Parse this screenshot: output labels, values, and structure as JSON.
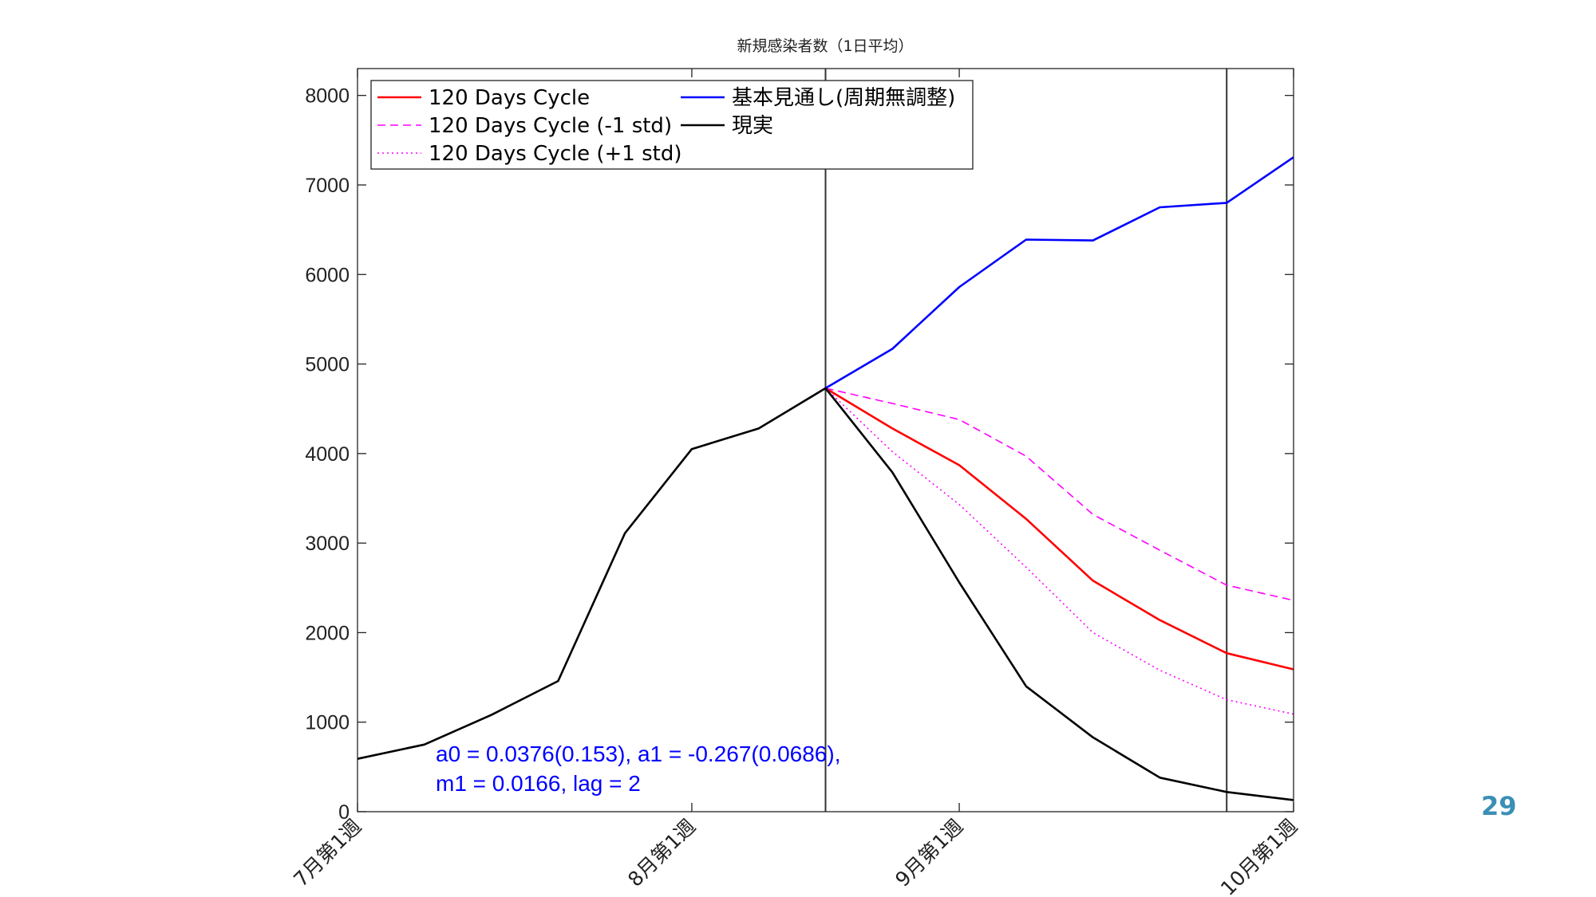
{
  "chart_data": {
    "type": "line",
    "title": "新規感染者数（1日平均）",
    "xlabel": "",
    "ylabel": "",
    "x_index": [
      0,
      1,
      2,
      3,
      4,
      5,
      6,
      7,
      8,
      9,
      10,
      11,
      12,
      13,
      14
    ],
    "xlim": [
      0,
      14
    ],
    "ylim": [
      0,
      8300
    ],
    "yticks": [
      0,
      1000,
      2000,
      3000,
      4000,
      5000,
      6000,
      7000,
      8000
    ],
    "xticks": [
      {
        "x": 0,
        "label": "7月第1週"
      },
      {
        "x": 5,
        "label": "8月第1週"
      },
      {
        "x": 9,
        "label": "9月第1週"
      },
      {
        "x": 14,
        "label": "10月第1週"
      }
    ],
    "vlines": [
      7,
      13
    ],
    "series": [
      {
        "name": "120 Days Cycle",
        "color": "#ff0000",
        "style": "solid",
        "x": [
          7,
          8,
          9,
          10,
          11,
          12,
          13,
          14
        ],
        "values": [
          4730,
          4280,
          3870,
          3270,
          2580,
          2140,
          1770,
          1590
        ]
      },
      {
        "name": "120 Days Cycle (-1 std)",
        "color": "#ff00ff",
        "style": "dashed",
        "x": [
          7,
          8,
          9,
          10,
          11,
          12,
          13,
          14
        ],
        "values": [
          4730,
          4560,
          4380,
          3970,
          3320,
          2920,
          2530,
          2360
        ]
      },
      {
        "name": "120 Days Cycle (+1 std)",
        "color": "#ff00ff",
        "style": "dotted",
        "x": [
          7,
          8,
          9,
          10,
          11,
          12,
          13,
          14
        ],
        "values": [
          4730,
          4020,
          3430,
          2730,
          2000,
          1580,
          1250,
          1090
        ]
      },
      {
        "name": "基本見通し(周期無調整)",
        "color": "#0000ff",
        "style": "solid",
        "x": [
          7,
          8,
          9,
          10,
          11,
          12,
          13,
          14
        ],
        "values": [
          4730,
          5170,
          5860,
          6390,
          6380,
          6750,
          6800,
          7310
        ]
      },
      {
        "name": "現実",
        "color": "#000000",
        "style": "solid",
        "x": [
          0,
          1,
          2,
          3,
          4,
          5,
          6,
          7,
          8,
          9,
          10,
          11,
          12,
          13,
          14
        ],
        "values": [
          590,
          750,
          1080,
          1460,
          3110,
          4050,
          4280,
          4730,
          3790,
          2560,
          1400,
          830,
          380,
          220,
          130
        ]
      }
    ],
    "legend_position": "top-left",
    "annotation": {
      "line1": "a0 = 0.0376(0.153), a1 = -0.267(0.0686),",
      "line2": "m1 = 0.0166, lag = 2",
      "color": "#0000ff"
    }
  },
  "page_number": "29"
}
